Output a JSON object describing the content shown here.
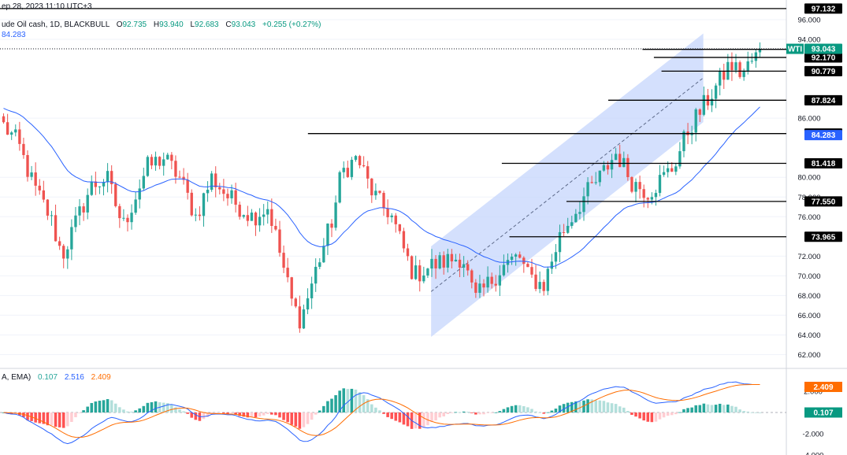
{
  "header": {
    "timestamp": "ep 28, 2023 11:10 UTC+3",
    "symbol": "ude Oil cash, 1D, BLACKBULL",
    "ohlc": {
      "o_label": "O",
      "o": "92.735",
      "h_label": "H",
      "h": "93.940",
      "l_label": "L",
      "l": "92.683",
      "c_label": "C",
      "c": "93.043",
      "change": "+0.255 (+0.27%)"
    },
    "ema_value": "84.283"
  },
  "indicator_header": {
    "name": "A, EMA)",
    "hist": "0.107",
    "macd": "2.516",
    "signal": "2.409"
  },
  "colors": {
    "up": "#26a69a",
    "down": "#ef5350",
    "ema": "#2962ff",
    "channel": "#c5d5fc",
    "macd_line": "#2962ff",
    "signal_line": "#ff6d00",
    "badge_green": "#089981",
    "badge_blue": "#2962ff",
    "badge_orange": "#ff6d00",
    "black": "#000000"
  },
  "chart_data": {
    "type": "candlestick",
    "symbol": "ude Oil cash, 1D, BLACKBULL",
    "price_axis": {
      "ylim": [
        60.6,
        98.0
      ],
      "ticks": [
        "96.000",
        "94.000",
        "86.000",
        "80.000",
        "78.000",
        "76.000",
        "72.000",
        "70.000",
        "68.000",
        "66.000",
        "64.000",
        "62.000"
      ]
    },
    "last_price": {
      "label": "WTI",
      "value": "93.043"
    },
    "ema": {
      "label": "84.283",
      "value": 84.283
    },
    "levels": [
      {
        "value": "97.132",
        "price": 97.132,
        "from": 0
      },
      {
        "value": "92.992",
        "price": 92.992,
        "from": 0.845
      },
      {
        "value": "92.170",
        "price": 92.17,
        "from": 0.86
      },
      {
        "value": "90.779",
        "price": 90.779,
        "from": 0.87
      },
      {
        "value": "87.824",
        "price": 87.824,
        "from": 0.8
      },
      {
        "value": "84.440",
        "price": 84.44,
        "from": 0.405
      },
      {
        "value": "81.418",
        "price": 81.418,
        "from": 0.66
      },
      {
        "value": "77.550",
        "price": 77.55,
        "from": 0.745
      },
      {
        "value": "73.965",
        "price": 73.965,
        "from": 0.67
      }
    ],
    "channel": {
      "lower": [
        [
          0.567,
          63.8
        ],
        [
          0.925,
          85.6
        ]
      ],
      "upper": [
        [
          0.567,
          73.0
        ],
        [
          0.925,
          94.6
        ]
      ]
    },
    "anchors": [
      [
        0,
        85.5
      ],
      [
        0.02,
        83.5
      ],
      [
        0.04,
        79
      ],
      [
        0.06,
        76
      ],
      [
        0.075,
        72
      ],
      [
        0.09,
        75
      ],
      [
        0.11,
        79
      ],
      [
        0.13,
        80
      ],
      [
        0.15,
        75
      ],
      [
        0.165,
        78
      ],
      [
        0.18,
        81
      ],
      [
        0.2,
        82
      ],
      [
        0.22,
        80
      ],
      [
        0.24,
        76
      ],
      [
        0.26,
        80
      ],
      [
        0.28,
        78
      ],
      [
        0.31,
        76
      ],
      [
        0.33,
        77
      ],
      [
        0.345,
        72
      ],
      [
        0.36,
        67
      ],
      [
        0.37,
        65.5
      ],
      [
        0.39,
        71
      ],
      [
        0.41,
        76
      ],
      [
        0.42,
        80.5
      ],
      [
        0.44,
        82
      ],
      [
        0.455,
        79
      ],
      [
        0.47,
        77
      ],
      [
        0.48,
        76.5
      ],
      [
        0.5,
        72
      ],
      [
        0.51,
        70
      ],
      [
        0.53,
        71
      ],
      [
        0.55,
        71.5
      ],
      [
        0.57,
        72
      ],
      [
        0.585,
        67.5
      ],
      [
        0.6,
        69
      ],
      [
        0.62,
        71
      ],
      [
        0.64,
        72
      ],
      [
        0.65,
        70
      ],
      [
        0.67,
        69
      ],
      [
        0.69,
        74
      ],
      [
        0.705,
        76
      ],
      [
        0.72,
        78
      ],
      [
        0.74,
        80
      ],
      [
        0.76,
        82.5
      ],
      [
        0.78,
        79.5
      ],
      [
        0.8,
        78.5
      ],
      [
        0.83,
        81
      ],
      [
        0.85,
        85
      ],
      [
        0.87,
        87.5
      ],
      [
        0.89,
        90
      ],
      [
        0.9,
        91.5
      ],
      [
        0.915,
        90.5
      ],
      [
        0.93,
        92
      ],
      [
        0.94,
        93
      ]
    ],
    "macd": {
      "ylim": [
        -4.0,
        4.0
      ],
      "ticks": [
        "2.000",
        "-2.000",
        "-4.000"
      ],
      "labels": {
        "hist": "0.107",
        "signal": "2.409"
      }
    }
  }
}
